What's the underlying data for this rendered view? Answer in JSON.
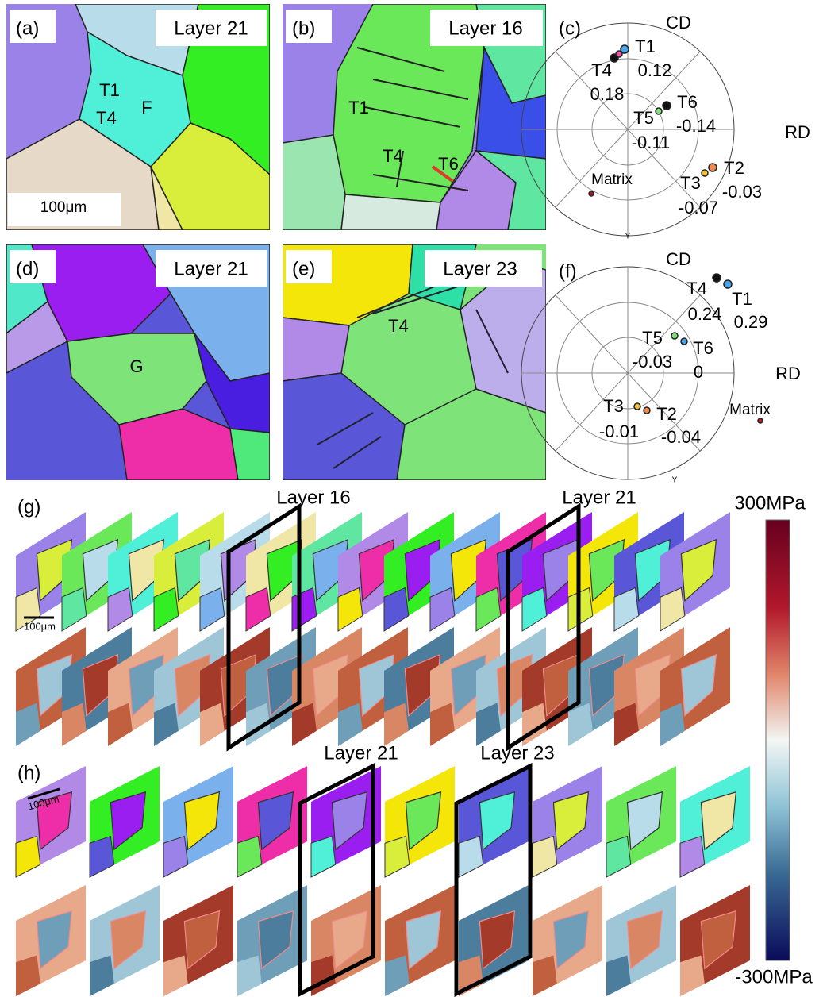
{
  "panel_a": {
    "label": "(a)",
    "layer": "Layer 21",
    "grains": [
      "T1",
      "T4",
      "F"
    ],
    "scale_bar": "100μm"
  },
  "panel_b": {
    "label": "(b)",
    "layer": "Layer 16",
    "grains": [
      "T1",
      "T4",
      "T6"
    ]
  },
  "panel_c": {
    "label": "(c)",
    "axes": [
      "CD",
      "RD",
      "Y"
    ],
    "points": [
      {
        "name": "T1",
        "value": "0.12"
      },
      {
        "name": "T4",
        "value": "0.18"
      },
      {
        "name": "T6",
        "value": "-0.14"
      },
      {
        "name": "T5",
        "value": "-0.11"
      },
      {
        "name": "T2",
        "value": "-0.03"
      },
      {
        "name": "T3",
        "value": "-0.07"
      }
    ],
    "matrix": "Matrix"
  },
  "panel_d": {
    "label": "(d)",
    "layer": "Layer 21",
    "grains": [
      "G"
    ]
  },
  "panel_e": {
    "label": "(e)",
    "layer": "Layer 23",
    "grains": [
      "T4"
    ]
  },
  "panel_f": {
    "label": "(f)",
    "axes": [
      "CD",
      "RD",
      "Y"
    ],
    "points": [
      {
        "name": "T4",
        "value": "0.24"
      },
      {
        "name": "T1",
        "value": "0.29"
      },
      {
        "name": "T5",
        "value": "-0.03"
      },
      {
        "name": "T6",
        "value": "0"
      },
      {
        "name": "T3",
        "value": "-0.01"
      },
      {
        "name": "T2",
        "value": "-0.04"
      }
    ],
    "matrix": "Matrix"
  },
  "panel_g": {
    "label": "(g)",
    "frames": [
      "Layer 16",
      "Layer 21"
    ],
    "scale_bar": "100μm"
  },
  "panel_h": {
    "label": "(h)",
    "frames": [
      "Layer 21",
      "Layer 23"
    ],
    "scale_bar": "100μm"
  },
  "colorbar": {
    "max": "300MPa",
    "min": "-300MPa"
  }
}
